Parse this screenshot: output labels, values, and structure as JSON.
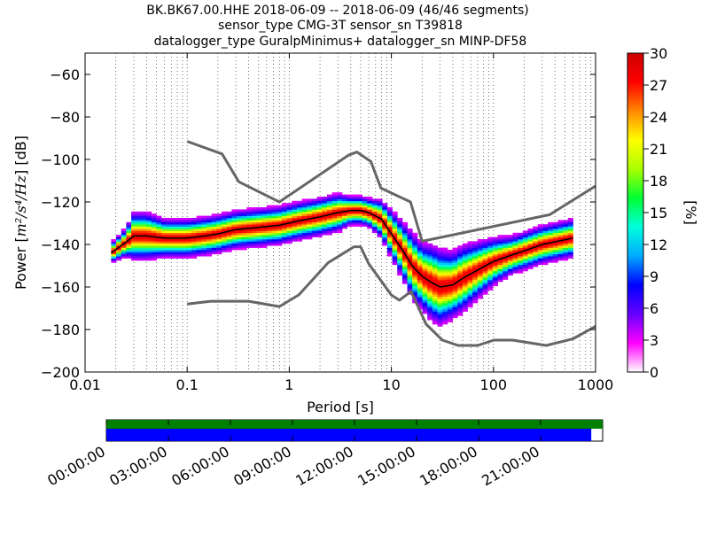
{
  "title_lines": [
    "BK.BK67.00.HHE   2018-06-09 -- 2018-06-09  (46/46 segments)",
    "sensor_type CMG-3T sensor_sn T39818",
    "datalogger_type GuralpMinimus+ datalogger_sn MINP-DF58"
  ],
  "chart_data": {
    "type": "heatmap",
    "xlabel": "Period [s]",
    "ylabel": "Power [m²/s⁴/Hz] [dB]",
    "ylabel_parts": {
      "prefix": "Power [",
      "unit": "m²/s⁴/Hz",
      "suffix": "] [dB]"
    },
    "x_scale": "log",
    "xlim": [
      0.01,
      1000
    ],
    "ylim": [
      -200,
      -50
    ],
    "x_ticks": [
      0.01,
      0.1,
      1,
      10,
      100,
      1000
    ],
    "x_tick_labels": [
      "0.01",
      "0.1",
      "1",
      "10",
      "100",
      "1000"
    ],
    "y_ticks": [
      -200,
      -180,
      -160,
      -140,
      -120,
      -100,
      -80,
      -60
    ],
    "y_tick_labels": [
      "−200",
      "−180",
      "−160",
      "−140",
      "−120",
      "−100",
      "−80",
      "−60"
    ],
    "grid": "dotted-x",
    "colorbar": {
      "label": "[%]",
      "range": [
        0,
        30
      ],
      "ticks": [
        0,
        3,
        6,
        9,
        12,
        15,
        18,
        21,
        24,
        27,
        30
      ],
      "colormap": [
        "#ffffff",
        "#ff00ff",
        "#6600ff",
        "#0000ff",
        "#00aaff",
        "#00ffdd",
        "#00ff33",
        "#aaff00",
        "#ffff00",
        "#ff8800",
        "#ff0000",
        "#cc0000"
      ]
    },
    "pdf_band": {
      "period": [
        0.018,
        0.025,
        0.03,
        0.04,
        0.06,
        0.1,
        0.15,
        0.2,
        0.3,
        0.5,
        0.8,
        1.2,
        2,
        3,
        4,
        5,
        6,
        8,
        10,
        13,
        16,
        20,
        25,
        30,
        40,
        50,
        70,
        100,
        150,
        200,
        300,
        600
      ],
      "mean_db": [
        -144,
        -139,
        -136,
        -136,
        -137,
        -137,
        -136,
        -135,
        -133,
        -132,
        -131,
        -129,
        -127,
        -125,
        -124,
        -124,
        -125,
        -128,
        -135,
        -143,
        -150,
        -155,
        -158,
        -160,
        -159,
        -156,
        -152,
        -148,
        -145,
        -143,
        -140,
        -137
      ],
      "spread_db": [
        2,
        3,
        5,
        5,
        4,
        4,
        4,
        4,
        4,
        4,
        4,
        4,
        4,
        4,
        3,
        3,
        3,
        4,
        5,
        6,
        7,
        7,
        8,
        8,
        7,
        7,
        6,
        5,
        4,
        4,
        4,
        4
      ]
    },
    "series": [
      {
        "role": "nhnm",
        "color": "#666666",
        "x": [
          0.1,
          0.22,
          0.32,
          0.8,
          3.8,
          4.6,
          6.3,
          7.9,
          15.4,
          20,
          354.8,
          1000
        ],
        "y": [
          -91.5,
          -97.4,
          -110.5,
          -120,
          -98,
          -96.5,
          -101,
          -113.5,
          -120,
          -138.5,
          -126,
          -112.5
        ]
      },
      {
        "role": "nlnm",
        "color": "#666666",
        "x": [
          0.1,
          0.17,
          0.4,
          0.8,
          1.24,
          2.4,
          4.3,
          5,
          6,
          10,
          12,
          15.6,
          21.9,
          31.6,
          45,
          70,
          101,
          154,
          328,
          600,
          1000
        ],
        "y": [
          -168,
          -166.7,
          -166.7,
          -169.2,
          -163.7,
          -148.6,
          -141.1,
          -141.1,
          -149,
          -163.8,
          -166.2,
          -162.1,
          -177.5,
          -185,
          -187.5,
          -187.5,
          -185,
          -185,
          -187.5,
          -184.4,
          -178.5
        ]
      },
      {
        "role": "mean",
        "color": "#000000",
        "x": [
          0.018,
          0.025,
          0.03,
          0.04,
          0.06,
          0.1,
          0.15,
          0.2,
          0.3,
          0.5,
          0.8,
          1.2,
          2,
          3,
          4,
          5,
          6,
          8,
          10,
          13,
          16,
          20,
          25,
          30,
          40,
          50,
          70,
          100,
          150,
          200,
          300,
          600
        ],
        "y": [
          -144,
          -139,
          -136,
          -136,
          -137,
          -137,
          -136,
          -135,
          -133,
          -132,
          -131,
          -129,
          -127,
          -125,
          -124,
          -124,
          -125,
          -128,
          -135,
          -143,
          -150,
          -155,
          -158,
          -160,
          -159,
          -156,
          -152,
          -148,
          -145,
          -143,
          -140,
          -137
        ]
      }
    ]
  },
  "timeline": {
    "tick_labels": [
      "00:00:00",
      "03:00:00",
      "06:00:00",
      "09:00:00",
      "12:00:00",
      "15:00:00",
      "18:00:00",
      "21:00:00"
    ],
    "tick_hours": [
      0,
      3,
      6,
      9,
      12,
      15,
      18,
      21
    ],
    "range_hours": [
      0,
      24
    ],
    "data_coverage_color": "#008000",
    "psd_coverage_color": "#0000ff",
    "data_coverage": [
      0,
      24
    ],
    "psd_coverage": [
      0,
      23.45
    ]
  }
}
